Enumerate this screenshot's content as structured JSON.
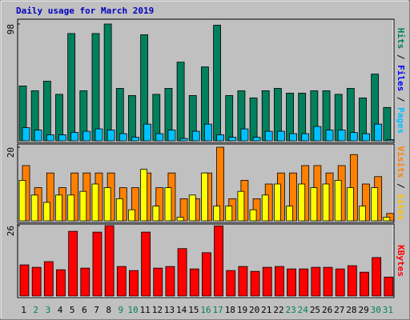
{
  "title": "Daily usage for March 2019",
  "chart_data": [
    {
      "type": "bar",
      "series": [
        {
          "name": "Hits",
          "color": "#00805c",
          "values": [
            46,
            42,
            50,
            39,
            90,
            42,
            90,
            98,
            44,
            38,
            89,
            39,
            44,
            66,
            38,
            62,
            97,
            38,
            42,
            36,
            42,
            44,
            40,
            40,
            42,
            42,
            39,
            44,
            36,
            56,
            28
          ]
        },
        {
          "name": "Pages",
          "color": "#00c0ff",
          "values": [
            11,
            9,
            5,
            5,
            7,
            8,
            10,
            9,
            6,
            3,
            14,
            6,
            9,
            2,
            8,
            14,
            5,
            3,
            10,
            3,
            8,
            8,
            6,
            6,
            12,
            9,
            9,
            7,
            6,
            14,
            1
          ]
        }
      ],
      "ylim": [
        0,
        98
      ],
      "yticks": [
        98
      ],
      "right_label": [
        {
          "text": "Pages",
          "color": "#00c0ff"
        },
        {
          "text": " / ",
          "color": "#000000"
        },
        {
          "text": "Files",
          "color": "#0000ff"
        },
        {
          "text": " / ",
          "color": "#000000"
        },
        {
          "text": "Hits",
          "color": "#00805c"
        }
      ]
    },
    {
      "type": "bar",
      "series": [
        {
          "name": "Visits",
          "color": "#ff8000",
          "values": [
            15,
            9,
            13,
            9,
            13,
            13,
            13,
            13,
            9,
            9,
            13,
            9,
            13,
            6,
            6,
            13,
            20,
            6,
            11,
            6,
            10,
            13,
            13,
            15,
            15,
            13,
            15,
            18,
            10,
            12,
            2
          ]
        },
        {
          "name": "Sites",
          "color": "#ffff00",
          "values": [
            11,
            7,
            5,
            7,
            7,
            8,
            10,
            9,
            6,
            3,
            14,
            4,
            9,
            1,
            7,
            13,
            4,
            4,
            8,
            3,
            7,
            10,
            4,
            10,
            9,
            10,
            11,
            9,
            4,
            9,
            1
          ]
        }
      ],
      "ylim": [
        0,
        20
      ],
      "yticks": [
        20
      ],
      "right_label": [
        {
          "text": "Sites",
          "color": "#ffc000"
        },
        {
          "text": " / ",
          "color": "#000000"
        },
        {
          "text": "Visits",
          "color": "#ff8000"
        }
      ]
    },
    {
      "type": "bar",
      "series": [
        {
          "name": "KBytes",
          "color": "#ff0000",
          "values": [
            11.5,
            10.6,
            12.7,
            9.7,
            23.9,
            10.3,
            23.6,
            26,
            10.9,
            9.4,
            23.6,
            10.3,
            10.9,
            17.5,
            10,
            16,
            25.9,
            9.4,
            10.9,
            9.1,
            10.6,
            10.9,
            10,
            10,
            10.6,
            10.6,
            10,
            11.2,
            8.8,
            14.2,
            7
          ]
        }
      ],
      "ylim": [
        0,
        26
      ],
      "yticks": [
        26
      ],
      "right_label": [
        {
          "text": "KBytes",
          "color": "#ff0000"
        }
      ],
      "categories": [
        "1",
        "2",
        "3",
        "4",
        "5",
        "6",
        "7",
        "8",
        "9",
        "10",
        "11",
        "12",
        "13",
        "14",
        "15",
        "16",
        "17",
        "18",
        "19",
        "20",
        "21",
        "22",
        "23",
        "24",
        "25",
        "26",
        "27",
        "28",
        "29",
        "30",
        "31"
      ],
      "category_colors": [
        "#000000",
        "#00805c",
        "#00805c",
        "#000000",
        "#000000",
        "#000000",
        "#000000",
        "#000000",
        "#00805c",
        "#00805c",
        "#000000",
        "#000000",
        "#000000",
        "#000000",
        "#000000",
        "#00805c",
        "#00805c",
        "#000000",
        "#000000",
        "#000000",
        "#000000",
        "#000000",
        "#00805c",
        "#00805c",
        "#000000",
        "#000000",
        "#000000",
        "#000000",
        "#000000",
        "#00805c",
        "#00805c"
      ]
    }
  ]
}
